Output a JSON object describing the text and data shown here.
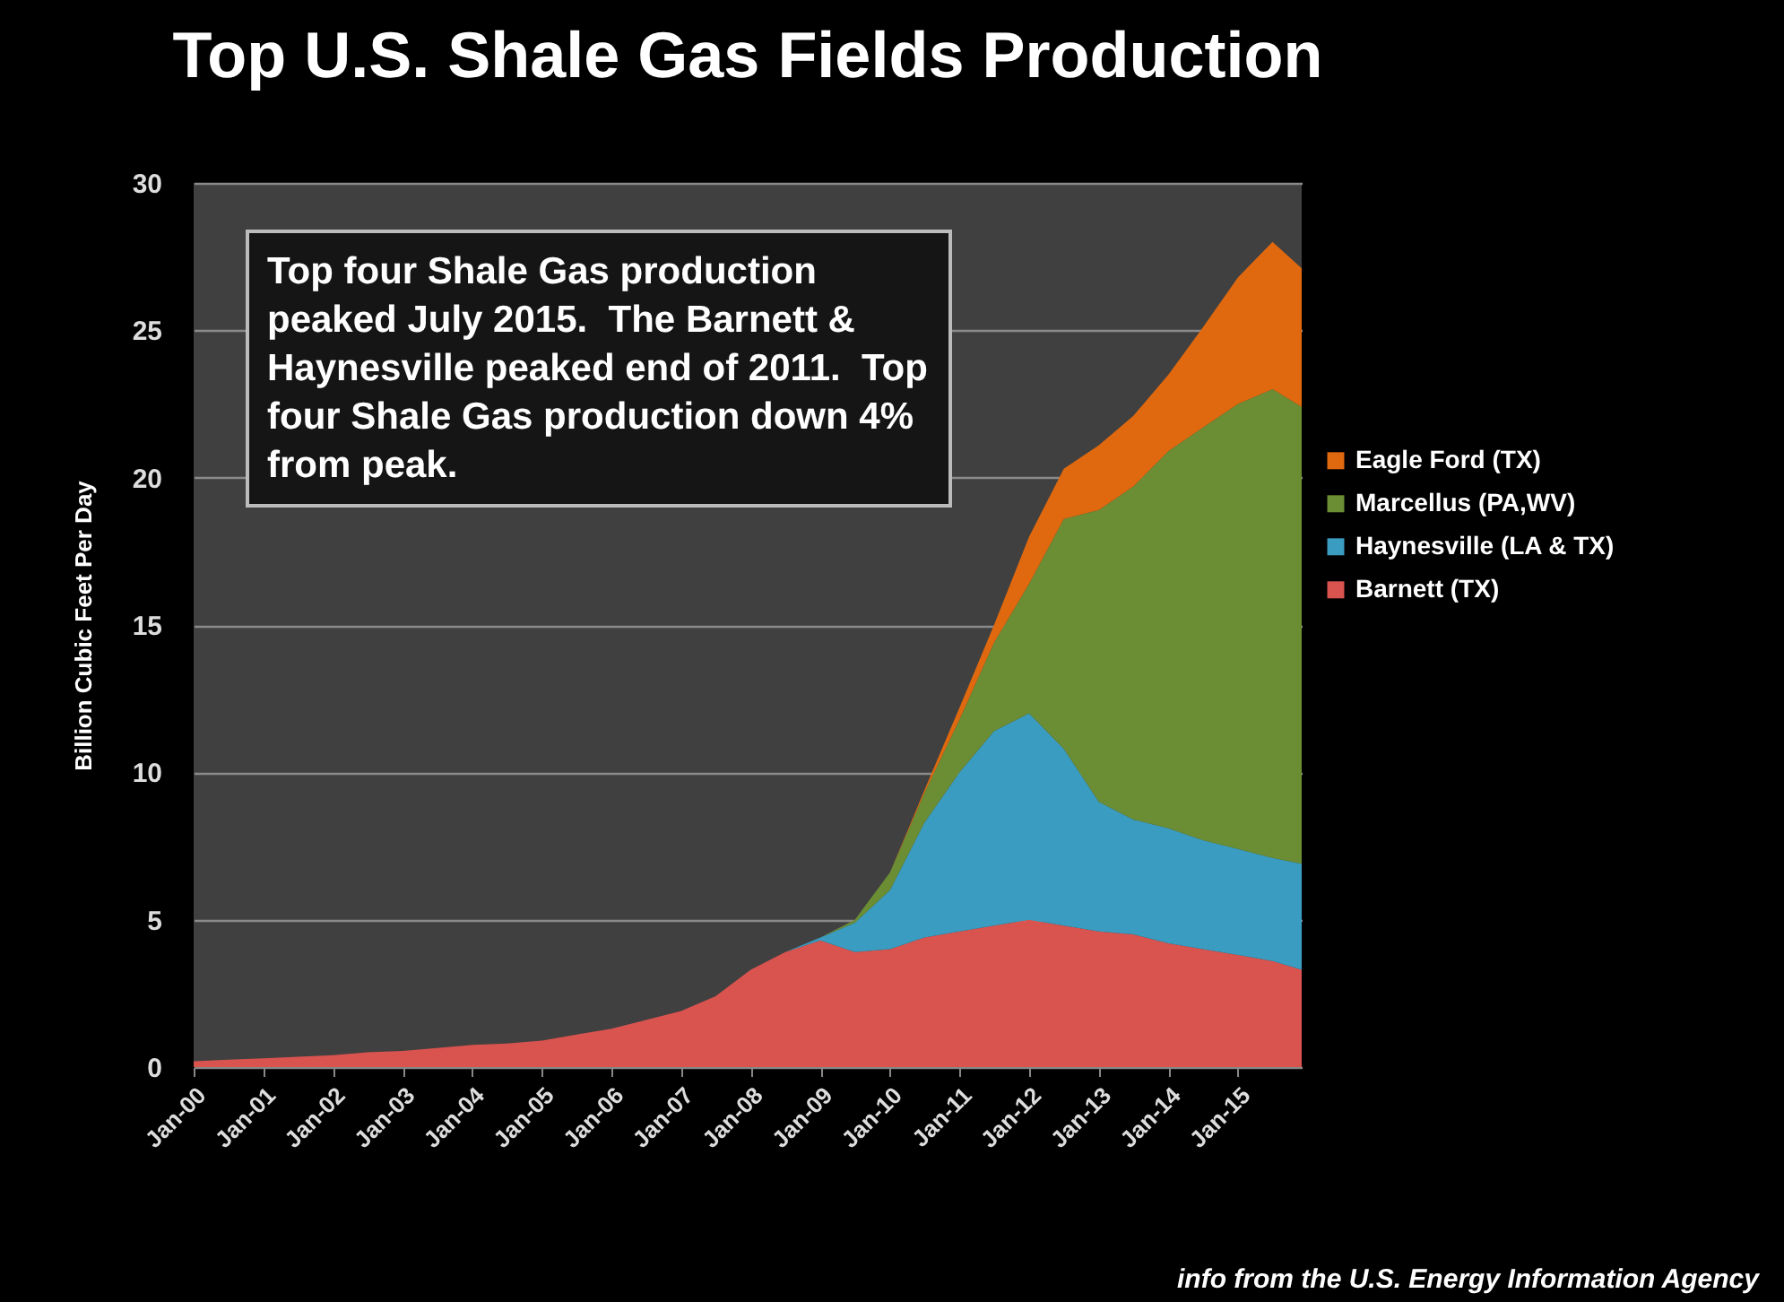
{
  "chart_data": {
    "type": "area",
    "title": "Top U.S. Shale Gas Fields Production",
    "ylabel": "Billion  Cubic  Feet  Per  Day",
    "stacked": true,
    "grid": "y",
    "legend": "right",
    "x": [
      "2000-01",
      "2000-07",
      "2001-01",
      "2001-07",
      "2002-01",
      "2002-07",
      "2003-01",
      "2003-07",
      "2004-01",
      "2004-07",
      "2005-01",
      "2005-07",
      "2006-01",
      "2006-07",
      "2007-01",
      "2007-07",
      "2008-01",
      "2008-07",
      "2009-01",
      "2009-07",
      "2010-01",
      "2010-07",
      "2011-01",
      "2011-07",
      "2012-01",
      "2012-07",
      "2013-01",
      "2013-07",
      "2014-01",
      "2014-07",
      "2015-01",
      "2015-07",
      "2015-12"
    ],
    "series": [
      {
        "name": "Barnett (TX)",
        "color": "#d9534f",
        "values": [
          0.2,
          0.25,
          0.3,
          0.35,
          0.4,
          0.5,
          0.55,
          0.65,
          0.75,
          0.8,
          0.9,
          1.1,
          1.3,
          1.6,
          1.9,
          2.4,
          3.3,
          3.9,
          4.3,
          3.9,
          4.0,
          4.4,
          4.6,
          4.8,
          5.0,
          4.8,
          4.6,
          4.5,
          4.2,
          4.0,
          3.8,
          3.6,
          3.3
        ]
      },
      {
        "name": "Haynesville (LA & TX)",
        "color": "#3a9cc0",
        "values": [
          0,
          0,
          0,
          0,
          0,
          0,
          0,
          0,
          0,
          0,
          0,
          0,
          0,
          0,
          0,
          0,
          0,
          0,
          0.1,
          1.0,
          2.0,
          3.9,
          5.4,
          6.6,
          7.0,
          6.0,
          4.4,
          3.9,
          3.9,
          3.7,
          3.6,
          3.5,
          3.6
        ]
      },
      {
        "name": "Marcellus (PA,WV)",
        "color": "#6b8e35",
        "values": [
          0,
          0,
          0,
          0,
          0,
          0,
          0,
          0,
          0,
          0,
          0,
          0,
          0,
          0,
          0,
          0,
          0,
          0,
          0,
          0.1,
          0.6,
          1.0,
          1.8,
          3.0,
          4.4,
          7.8,
          9.9,
          11.3,
          12.8,
          14.0,
          15.1,
          15.9,
          15.5
        ]
      },
      {
        "name": "Eagle Ford (TX)",
        "color": "#e0690f",
        "values": [
          0,
          0,
          0,
          0,
          0,
          0,
          0,
          0,
          0,
          0,
          0,
          0,
          0,
          0,
          0,
          0,
          0,
          0,
          0,
          0,
          0,
          0.1,
          0.4,
          0.6,
          1.6,
          1.7,
          2.2,
          2.4,
          2.6,
          3.4,
          4.3,
          5.0,
          4.7
        ]
      }
    ],
    "xlim": [
      "2000-01",
      "2015-12"
    ],
    "xticks": [
      {
        "value": "2000-01",
        "label": "Jan-00"
      },
      {
        "value": "2001-01",
        "label": "Jan-01"
      },
      {
        "value": "2002-01",
        "label": "Jan-02"
      },
      {
        "value": "2003-01",
        "label": "Jan-03"
      },
      {
        "value": "2004-01",
        "label": "Jan-04"
      },
      {
        "value": "2005-01",
        "label": "Jan-05"
      },
      {
        "value": "2006-01",
        "label": "Jan-06"
      },
      {
        "value": "2007-01",
        "label": "Jan-07"
      },
      {
        "value": "2008-01",
        "label": "Jan-08"
      },
      {
        "value": "2009-01",
        "label": "Jan-09"
      },
      {
        "value": "2010-01",
        "label": "Jan-10"
      },
      {
        "value": "2011-01",
        "label": "Jan-11"
      },
      {
        "value": "2012-01",
        "label": "Jan-12"
      },
      {
        "value": "2013-01",
        "label": "Jan-13"
      },
      {
        "value": "2014-01",
        "label": "Jan-14"
      },
      {
        "value": "2015-01",
        "label": "Jan-15"
      }
    ],
    "ylim": [
      0,
      30
    ],
    "yticks": [
      0,
      5,
      10,
      15,
      20,
      25,
      30
    ],
    "annotations": [
      "Top four Shale Gas production peaked July 2015.  The Barnett & Haynesville peaked end of 2011.  Top four Shale Gas production down 4% from peak.",
      "info from the U.S. Energy Information Agency"
    ]
  }
}
